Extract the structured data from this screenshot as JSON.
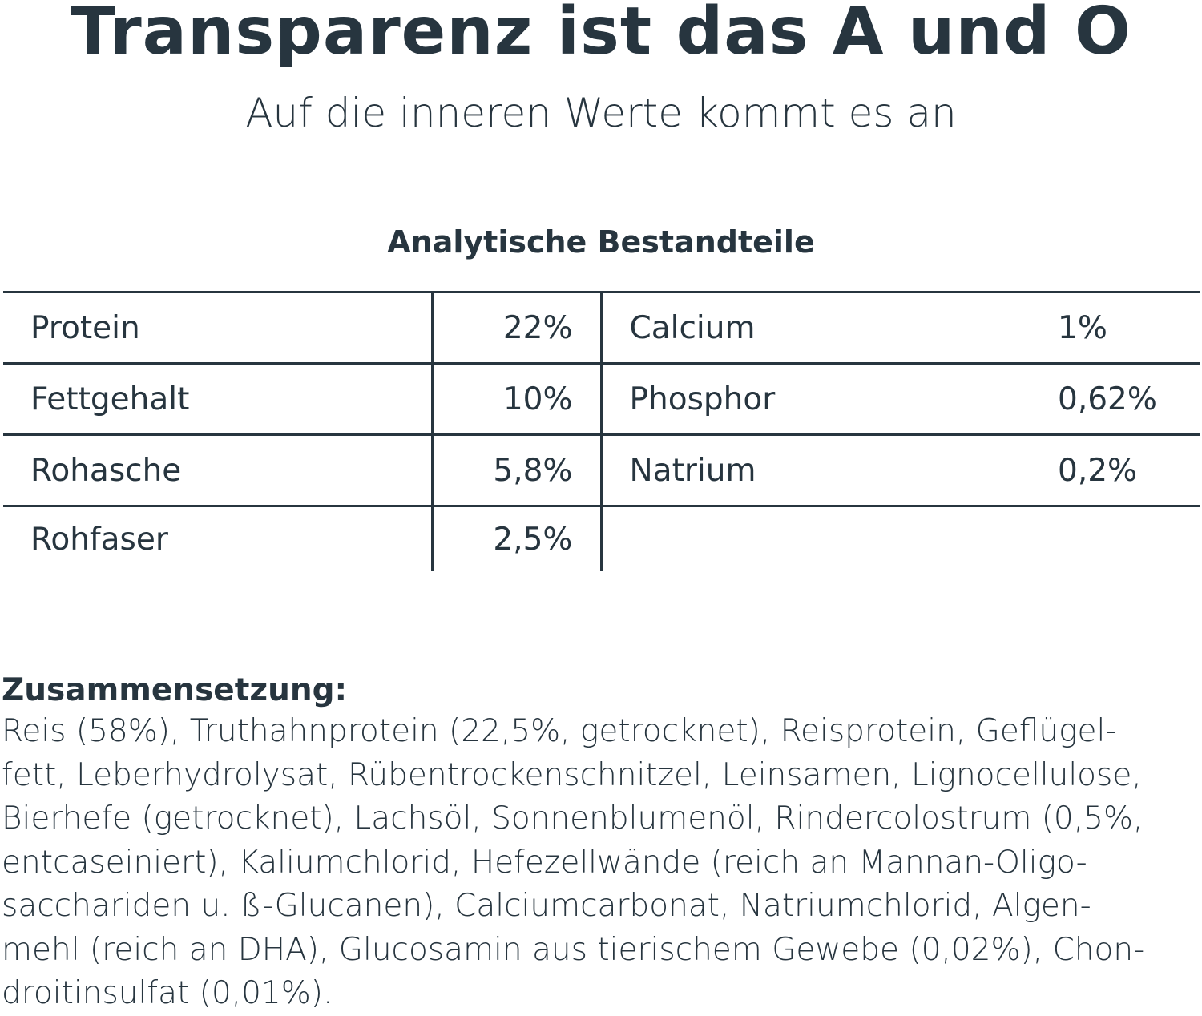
{
  "title": "Transparenz ist das A und O",
  "subtitle": "Auf die inneren Werte kommt es an",
  "analysis": {
    "heading": "Analytische Bestandteile",
    "rows": [
      {
        "k1": "Protein",
        "v1": "22%",
        "k2": "Calcium",
        "v2": "1%"
      },
      {
        "k1": "Fettgehalt",
        "v1": "10%",
        "k2": "Phosphor",
        "v2": "0,62%"
      },
      {
        "k1": "Rohasche",
        "v1": "5,8%",
        "k2": "Natrium",
        "v2": "0,2%"
      },
      {
        "k1": "Rohfaser",
        "v1": "2,5%"
      }
    ]
  },
  "composition": {
    "heading": "Zusammensetzung:",
    "lines": [
      "Reis (58%), Truthahnprotein (22,5%, getrocknet), Reisprotein, Geflügel-",
      "fett, Leberhydrolysat, Rübentrockenschnitzel, Leinsamen, Lignocellulose,",
      "Bierhefe (getrocknet), Lachsöl, Sonnenblumenöl, Rindercolostrum (0,5%,",
      "entcaseiniert), Kaliumchlorid, Hefezellwände (reich an Mannan-Oligo-",
      "sacchariden u. ß-Glucanen), Calciumcarbonat, Natriumchlorid, Algen-",
      "mehl (reich an DHA), Glucosamin aus tierischem Gewebe (0,02%), Chon-",
      "droitinsulfat (0,01%)."
    ]
  }
}
